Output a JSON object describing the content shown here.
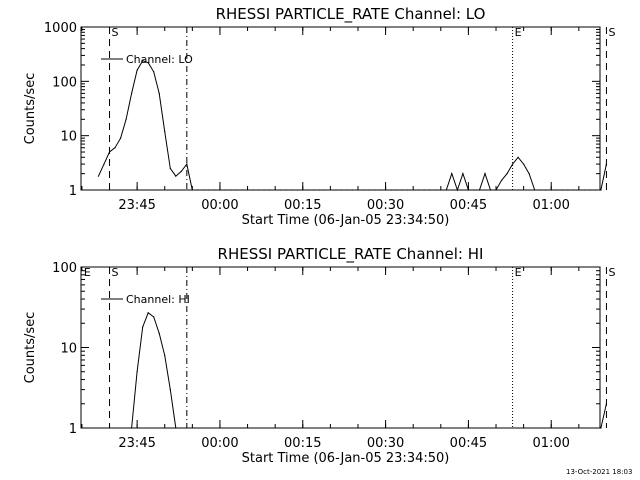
{
  "chart_data": [
    {
      "type": "line",
      "title": "RHESSI PARTICLE_RATE Channel: LO",
      "xlabel": "Start Time (06-Jan-05 23:34:50)",
      "ylabel": "Counts/sec",
      "y_scale": "log",
      "ylim": [
        1,
        1000
      ],
      "y_ticks": [
        "1",
        "10",
        "100",
        "1000"
      ],
      "x_ticks": [
        "23:45",
        "00:00",
        "00:15",
        "00:30",
        "00:45",
        "01:00"
      ],
      "legend": "Channel: LO",
      "legend_position": "top-left",
      "markers": [
        {
          "label": "S",
          "style": "dashed",
          "time": "23:40"
        },
        {
          "label": "",
          "style": "dash-dot",
          "time": "23:54"
        },
        {
          "label": "E",
          "style": "dotted",
          "time": "00:53"
        },
        {
          "label": "S",
          "style": "dashed",
          "time": "01:10"
        }
      ],
      "series": [
        {
          "name": "Channel: LO",
          "x": [
            "23:38",
            "23:39",
            "23:40",
            "23:41",
            "23:42",
            "23:43",
            "23:44",
            "23:45",
            "23:46",
            "23:47",
            "23:48",
            "23:49",
            "23:50",
            "23:51",
            "23:52",
            "23:53",
            "23:54",
            "23:55",
            "23:56",
            "23:57",
            "23:58",
            "23:59",
            "00:00",
            "00:01",
            "00:02",
            "00:03",
            "00:04",
            "00:05",
            "00:06",
            "00:07",
            "00:08",
            "00:09",
            "00:10",
            "00:11",
            "00:12",
            "00:13",
            "00:14",
            "00:15",
            "00:16",
            "00:17",
            "00:18",
            "00:19",
            "00:20",
            "00:21",
            "00:22",
            "00:23",
            "00:24",
            "00:25",
            "00:26",
            "00:27",
            "00:28",
            "00:29",
            "00:30",
            "00:31",
            "00:32",
            "00:33",
            "00:34",
            "00:35",
            "00:36",
            "00:37",
            "00:38",
            "00:39",
            "00:40",
            "00:41",
            "00:42",
            "00:43",
            "00:44",
            "00:45",
            "00:46",
            "00:47",
            "00:48",
            "00:49",
            "00:50",
            "00:51",
            "00:52",
            "00:53",
            "00:54",
            "00:55",
            "00:56",
            "00:57",
            "00:58",
            "00:59",
            "01:00",
            "01:01",
            "01:02",
            "01:03",
            "01:04",
            "01:05",
            "01:06",
            "01:07",
            "01:08",
            "01:09",
            "01:10"
          ],
          "values": [
            1.8,
            3,
            5,
            6,
            9,
            20,
            60,
            160,
            240,
            220,
            150,
            60,
            12,
            2.5,
            1.8,
            2.2,
            3,
            1,
            1,
            1,
            1,
            1,
            1,
            1,
            1,
            1,
            1,
            1,
            1,
            1,
            1,
            1,
            1,
            1,
            1,
            1,
            1,
            1,
            1,
            1,
            1,
            1,
            1,
            1,
            1,
            1,
            1,
            1,
            1,
            1,
            1,
            1,
            1,
            1,
            1,
            1,
            1,
            1,
            1,
            1,
            1,
            1,
            1,
            1,
            2,
            1,
            2,
            1,
            1,
            1,
            2,
            1,
            1,
            1.5,
            2,
            3,
            4,
            3,
            2,
            1,
            1,
            1,
            1,
            1,
            1,
            1,
            1,
            1,
            1,
            1,
            1,
            1,
            3
          ]
        }
      ]
    },
    {
      "type": "line",
      "title": "RHESSI PARTICLE_RATE Channel: HI",
      "xlabel": "Start Time (06-Jan-05 23:34:50)",
      "ylabel": "Counts/sec",
      "y_scale": "log",
      "ylim": [
        1,
        100
      ],
      "y_ticks": [
        "1",
        "10",
        "100"
      ],
      "x_ticks": [
        "23:45",
        "00:00",
        "00:15",
        "00:30",
        "00:45",
        "01:00"
      ],
      "legend": "Channel: HI",
      "legend_position": "top-left",
      "markers": [
        {
          "label": "E",
          "style": "none",
          "time": "23:35"
        },
        {
          "label": "S",
          "style": "dashed",
          "time": "23:40"
        },
        {
          "label": "",
          "style": "dash-dot",
          "time": "23:54"
        },
        {
          "label": "E",
          "style": "dotted",
          "time": "00:53"
        },
        {
          "label": "S",
          "style": "dashed",
          "time": "01:10"
        }
      ],
      "series": [
        {
          "name": "Channel: HI",
          "x": [
            "23:44",
            "23:45",
            "23:46",
            "23:47",
            "23:48",
            "23:49",
            "23:50",
            "23:51",
            "23:52",
            "01:09",
            "01:10"
          ],
          "values": [
            1,
            5,
            18,
            27,
            24,
            15,
            8,
            3,
            1,
            1,
            2
          ]
        }
      ]
    }
  ],
  "footer": {
    "date_stamp": "13-Oct-2021 18:03"
  }
}
